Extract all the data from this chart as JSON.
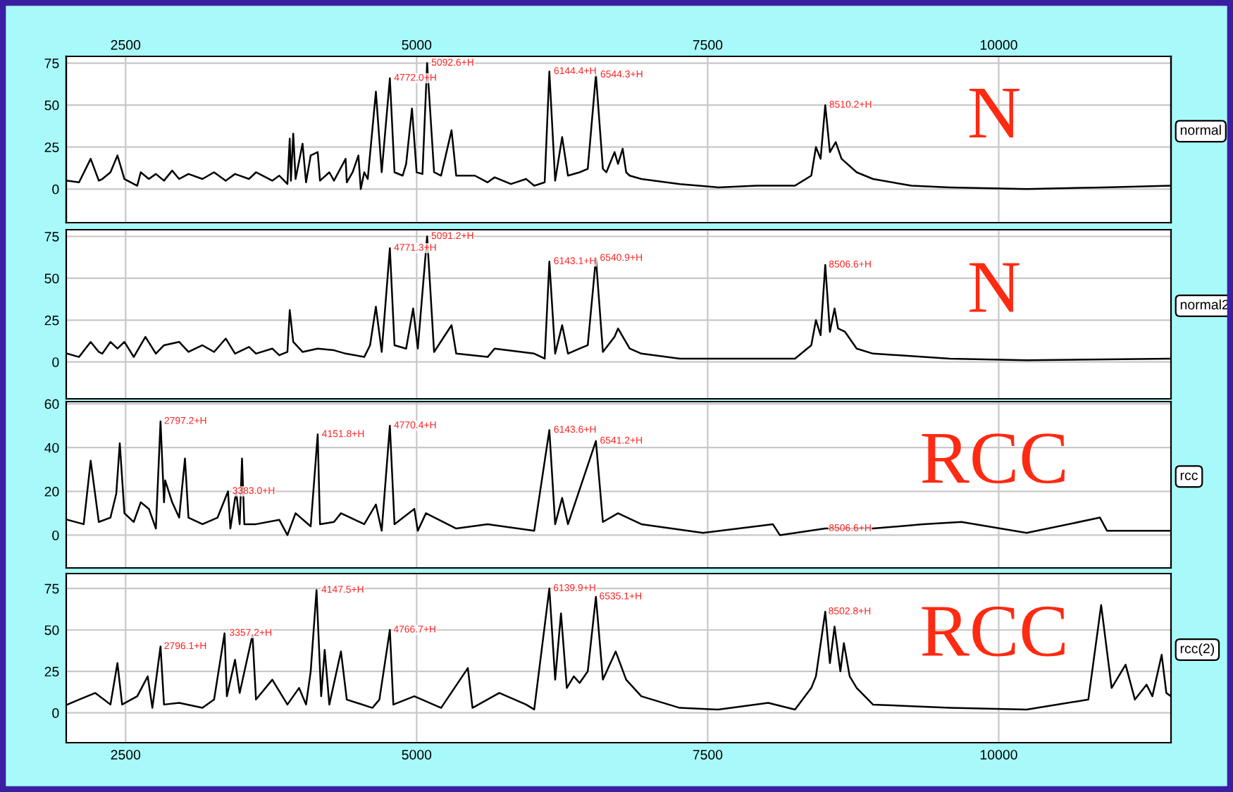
{
  "chart_data": [
    {
      "type": "line",
      "xlim": [
        1990,
        11480
      ],
      "xticks": [
        2500,
        5000,
        7500,
        10000
      ],
      "x2lim": [
        1990,
        11480
      ],
      "x2ticks": [
        2500,
        5000,
        7500,
        10000
      ],
      "ylim": [
        -20,
        79
      ],
      "yticks": [
        0,
        25,
        50,
        75
      ],
      "grid": true,
      "tick_labels": "y",
      "series": [
        {
          "name": "normal",
          "color": "#000000",
          "x": [
            2000,
            2100,
            2200,
            2270,
            2300,
            2370,
            2430,
            2490,
            2600,
            2630,
            2700,
            2760,
            2830,
            2900,
            2960,
            3040,
            3160,
            3260,
            3360,
            3440,
            3560,
            3620,
            3760,
            3820,
            3890,
            3910,
            3920,
            3940,
            3960,
            4020,
            4050,
            4090,
            4150,
            4170,
            4250,
            4290,
            4390,
            4400,
            4450,
            4500,
            4520,
            4550,
            4580,
            4650,
            4700,
            4770,
            4810,
            4880,
            4910,
            4960,
            5000,
            5050,
            5090,
            5150,
            5210,
            5300,
            5340,
            5500,
            5610,
            5670,
            5810,
            5940,
            6010,
            6100,
            6140,
            6190,
            6250,
            6300,
            6400,
            6470,
            6540,
            6600,
            6630,
            6700,
            6730,
            6770,
            6800,
            6830,
            6930,
            7260,
            7590,
            7920,
            8250,
            8390,
            8430,
            8470,
            8510,
            8550,
            8600,
            8650,
            8780,
            8920,
            9250,
            9580,
            10240,
            10900,
            11480
          ],
          "values": [
            5,
            4,
            18,
            5,
            6,
            10,
            20,
            6,
            2,
            10,
            6,
            9,
            5,
            11,
            6,
            9,
            6,
            10,
            5,
            9,
            6,
            10,
            5,
            8,
            3,
            30,
            5,
            33,
            6,
            27,
            4,
            20,
            22,
            5,
            10,
            5,
            18,
            4,
            10,
            20,
            0,
            10,
            6,
            58,
            10,
            66,
            10,
            8,
            15,
            48,
            10,
            9,
            75,
            10,
            8,
            35,
            8,
            8,
            4,
            7,
            3,
            6,
            2,
            4,
            70,
            5,
            31,
            8,
            10,
            12,
            68,
            12,
            10,
            22,
            15,
            24,
            10,
            8,
            6,
            3,
            1,
            2,
            2,
            8,
            25,
            18,
            50,
            22,
            28,
            18,
            10,
            6,
            2,
            1,
            0,
            1,
            2
          ]
        }
      ],
      "annotations": [
        {
          "text": "4772.0+H",
          "x": 4772,
          "y": 66
        },
        {
          "text": "5092.6+H",
          "x": 5092.6,
          "y": 75
        },
        {
          "text": "6144.4+H",
          "x": 6144.4,
          "y": 70
        },
        {
          "text": "6544.3+H",
          "x": 6544.3,
          "y": 68
        },
        {
          "text": "8510.2+H",
          "x": 8510.2,
          "y": 50
        },
        "N"
      ]
    },
    {
      "type": "line",
      "xlim": [
        1990,
        11480
      ],
      "xticks": [
        2500,
        5000,
        7500,
        10000
      ],
      "ylim": [
        -22,
        79
      ],
      "yticks": [
        0,
        25,
        50,
        75
      ],
      "grid": true,
      "tick_labels": "y",
      "series": [
        {
          "name": "normal2",
          "color": "#000000",
          "x": [
            2000,
            2100,
            2200,
            2270,
            2300,
            2370,
            2430,
            2490,
            2570,
            2670,
            2760,
            2830,
            2960,
            3040,
            3160,
            3260,
            3360,
            3440,
            3560,
            3620,
            3760,
            3820,
            3890,
            3910,
            3940,
            4020,
            4150,
            4290,
            4390,
            4550,
            4600,
            4650,
            4700,
            4770,
            4810,
            4910,
            4970,
            5010,
            5090,
            5150,
            5300,
            5340,
            5610,
            5670,
            6010,
            6100,
            6140,
            6190,
            6250,
            6300,
            6400,
            6470,
            6540,
            6600,
            6700,
            6730,
            6830,
            6930,
            7260,
            7920,
            8250,
            8390,
            8430,
            8470,
            8510,
            8550,
            8590,
            8620,
            8680,
            8780,
            8920,
            9580,
            10240,
            11480
          ],
          "values": [
            5,
            3,
            12,
            6,
            5,
            12,
            8,
            12,
            3,
            15,
            5,
            10,
            12,
            6,
            10,
            6,
            14,
            5,
            9,
            5,
            8,
            4,
            6,
            31,
            12,
            6,
            8,
            7,
            5,
            3,
            10,
            33,
            6,
            68,
            10,
            8,
            32,
            8,
            75,
            6,
            22,
            5,
            3,
            8,
            5,
            2,
            60,
            5,
            22,
            5,
            8,
            10,
            62,
            6,
            15,
            20,
            8,
            5,
            2,
            2,
            2,
            10,
            25,
            16,
            58,
            18,
            32,
            20,
            18,
            8,
            5,
            2,
            1,
            2
          ]
        }
      ],
      "annotations": [
        {
          "text": "4771.3+H",
          "x": 4771.3,
          "y": 68
        },
        {
          "text": "5091.2+H",
          "x": 5091.2,
          "y": 75
        },
        {
          "text": "6143.1+H",
          "x": 6143.1,
          "y": 60
        },
        {
          "text": "6540.9+H",
          "x": 6540.9,
          "y": 62
        },
        {
          "text": "8506.6+H",
          "x": 8506.6,
          "y": 58
        },
        "N"
      ]
    },
    {
      "type": "line",
      "xlim": [
        1990,
        11480
      ],
      "xticks": [
        2500,
        5000,
        7500,
        10000
      ],
      "ylim": [
        -15,
        61
      ],
      "yticks": [
        0,
        20,
        40,
        60
      ],
      "grid": true,
      "tick_labels": "y",
      "series": [
        {
          "name": "rcc",
          "color": "#000000",
          "x": [
            2000,
            2140,
            2200,
            2270,
            2370,
            2420,
            2450,
            2490,
            2570,
            2630,
            2700,
            2760,
            2800,
            2830,
            2840,
            2900,
            2960,
            3010,
            3040,
            3160,
            3290,
            3380,
            3400,
            3450,
            3480,
            3500,
            3520,
            3620,
            3820,
            3890,
            3960,
            4090,
            4150,
            4170,
            4290,
            4350,
            4550,
            4650,
            4700,
            4770,
            4810,
            4980,
            5010,
            5080,
            5340,
            5610,
            6010,
            6140,
            6190,
            6250,
            6300,
            6540,
            6600,
            6730,
            6930,
            7460,
            8060,
            8120,
            8510,
            8920,
            9350,
            9680,
            10240,
            10870,
            10930,
            11480
          ],
          "values": [
            7,
            5,
            34,
            6,
            8,
            19,
            42,
            10,
            6,
            15,
            12,
            3,
            52,
            15,
            25,
            15,
            8,
            35,
            8,
            5,
            8,
            20,
            3,
            20,
            5,
            35,
            5,
            5,
            7,
            0,
            10,
            4,
            46,
            5,
            6,
            10,
            5,
            14,
            2,
            50,
            5,
            12,
            2,
            10,
            3,
            5,
            2,
            48,
            5,
            17,
            5,
            43,
            6,
            10,
            5,
            1,
            5,
            0,
            3,
            3,
            5,
            6,
            1,
            8,
            2,
            2
          ]
        }
      ],
      "annotations": [
        {
          "text": "2797.2+H",
          "x": 2797.2,
          "y": 52
        },
        {
          "text": "3383.0+H",
          "x": 3383,
          "y": 20
        },
        {
          "text": "4151.8+H",
          "x": 4151.8,
          "y": 46
        },
        {
          "text": "4770.4+H",
          "x": 4770.4,
          "y": 50
        },
        {
          "text": "6143.6+H",
          "x": 6143.6,
          "y": 48
        },
        {
          "text": "6541.2+H",
          "x": 6541.2,
          "y": 43
        },
        {
          "text": "8506.6+H",
          "x": 8506.6,
          "y": 3
        },
        "RCC"
      ]
    },
    {
      "type": "line",
      "xlim": [
        1990,
        11480
      ],
      "xticks": [
        2500,
        5000,
        7500,
        10000
      ],
      "ylim": [
        -18,
        84
      ],
      "yticks": [
        0,
        25,
        50,
        75
      ],
      "grid": true,
      "series": [
        {
          "name": "rcc(2)",
          "color": "#000000",
          "x": [
            2000,
            2100,
            2240,
            2370,
            2430,
            2470,
            2600,
            2690,
            2730,
            2800,
            2830,
            2960,
            3160,
            3260,
            3350,
            3370,
            3440,
            3480,
            3590,
            3620,
            3760,
            3890,
            3990,
            4050,
            4090,
            4140,
            4180,
            4210,
            4250,
            4350,
            4400,
            4620,
            4680,
            4770,
            4800,
            4980,
            5210,
            5440,
            5480,
            5710,
            5940,
            6010,
            6140,
            6190,
            6240,
            6290,
            6350,
            6400,
            6470,
            6540,
            6600,
            6710,
            6800,
            6930,
            7260,
            7590,
            8020,
            8250,
            8390,
            8430,
            8510,
            8550,
            8590,
            8640,
            8670,
            8720,
            8780,
            8920,
            9580,
            10240,
            10770,
            10880,
            10970,
            11090,
            11170,
            11270,
            11320,
            11400,
            11440,
            11480
          ],
          "values": [
            5,
            8,
            12,
            5,
            30,
            5,
            10,
            22,
            3,
            40,
            5,
            6,
            3,
            8,
            48,
            10,
            32,
            12,
            47,
            8,
            20,
            5,
            15,
            5,
            25,
            74,
            10,
            38,
            5,
            37,
            8,
            3,
            8,
            50,
            5,
            10,
            3,
            27,
            3,
            12,
            5,
            2,
            75,
            20,
            60,
            15,
            22,
            18,
            25,
            70,
            20,
            37,
            20,
            10,
            3,
            2,
            6,
            2,
            15,
            22,
            61,
            30,
            52,
            25,
            42,
            22,
            15,
            5,
            3,
            2,
            8,
            65,
            15,
            29,
            8,
            17,
            10,
            35,
            12,
            10
          ]
        }
      ],
      "annotations": [
        {
          "text": "2796.1+H",
          "x": 2796.1,
          "y": 40
        },
        {
          "text": "3357.2+H",
          "x": 3357.2,
          "y": 48
        },
        {
          "text": "4147.5+H",
          "x": 4147.5,
          "y": 74
        },
        {
          "text": "4766.7+H",
          "x": 4766.7,
          "y": 50
        },
        {
          "text": "6139.9+H",
          "x": 6139.9,
          "y": 75
        },
        {
          "text": "6535.1+H",
          "x": 6535.1,
          "y": 70
        },
        {
          "text": "8502.8+H",
          "x": 8502.8,
          "y": 61
        },
        "RCC"
      ]
    }
  ]
}
